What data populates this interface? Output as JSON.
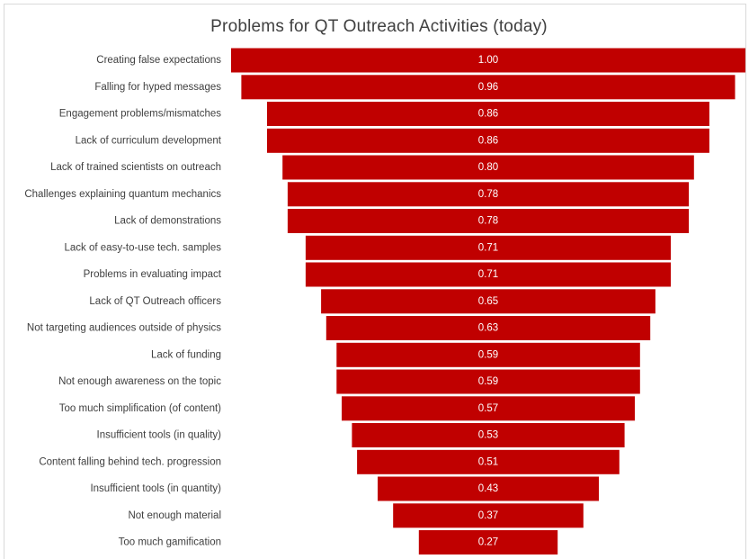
{
  "chart_data": {
    "type": "bar",
    "orientation": "horizontal-funnel",
    "title": "Problems for QT Outreach Activities (today)",
    "xlabel": "",
    "ylabel": "",
    "xlim": [
      0,
      1
    ],
    "grid": false,
    "legend": "none",
    "bar_color": "#c00000",
    "categories": [
      "Creating false expectations",
      "Falling for hyped messages",
      "Engagement problems/mismatches",
      "Lack of curriculum development",
      "Lack of trained scientists on outreach",
      "Challenges explaining quantum mechanics",
      "Lack of demonstrations",
      "Lack of easy-to-use tech. samples",
      "Problems in evaluating impact",
      "Lack of QT Outreach officers",
      "Not targeting audiences outside of physics",
      "Lack of funding",
      "Not enough awareness on the topic",
      "Too much simplification (of content)",
      "Insufficient tools (in quality)",
      "Content falling behind tech. progression",
      "Insufficient tools (in quantity)",
      "Not enough material",
      "Too much gamification"
    ],
    "values": [
      1.0,
      0.96,
      0.86,
      0.86,
      0.8,
      0.78,
      0.78,
      0.71,
      0.71,
      0.65,
      0.63,
      0.59,
      0.59,
      0.57,
      0.53,
      0.51,
      0.43,
      0.37,
      0.27
    ],
    "data_labels": [
      "1.00",
      "0.96",
      "0.86",
      "0.86",
      "0.80",
      "0.78",
      "0.78",
      "0.71",
      "0.71",
      "0.65",
      "0.63",
      "0.59",
      "0.59",
      "0.57",
      "0.53",
      "0.51",
      "0.43",
      "0.37",
      "0.27"
    ]
  }
}
